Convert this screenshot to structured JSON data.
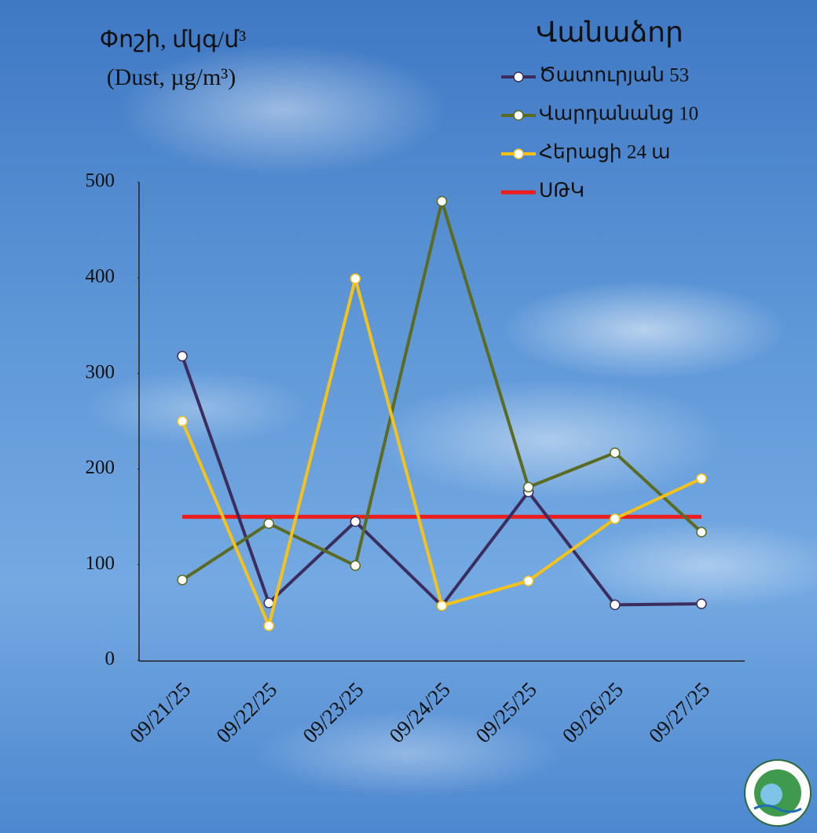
{
  "chart_data": {
    "type": "line",
    "y_label": [
      "Փոշի, մկգ/մ³",
      "(Dust, µg/m³)"
    ],
    "legend_title": "Վանաձոր",
    "categories": [
      "09/21/25",
      "09/22/25",
      "09/23/25",
      "09/24/25",
      "09/25/25",
      "09/26/25",
      "09/27/25"
    ],
    "series": [
      {
        "name": "Ծատուրյան 53",
        "color": "#3b2d5e",
        "values": [
          318,
          60,
          145,
          57,
          176,
          58,
          59
        ],
        "markers": true
      },
      {
        "name": "Վարդանանց 10",
        "color": "#5b6b22",
        "values": [
          84,
          143,
          99,
          480,
          181,
          217,
          134
        ],
        "markers": true
      },
      {
        "name": "Հերացի 24 ա",
        "color": "#f6c21a",
        "values": [
          250,
          36,
          399,
          57,
          83,
          148,
          190
        ],
        "markers": true
      },
      {
        "name": "ՍԹԿ",
        "color": "#ee1c1c",
        "values": [
          150,
          150,
          150,
          150,
          150,
          150,
          150
        ],
        "markers": false
      }
    ],
    "ylim": [
      0,
      500
    ],
    "yticks": [
      0,
      100,
      200,
      300,
      400,
      500
    ]
  }
}
